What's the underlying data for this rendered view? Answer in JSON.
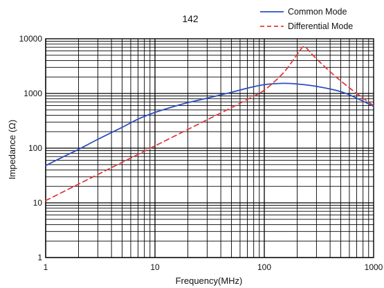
{
  "chart_data": {
    "type": "line",
    "title": "142",
    "xlabel": "Frequency(MHz)",
    "ylabel": "Impedance (Ω)",
    "xscale": "log",
    "yscale": "log",
    "xlim": [
      1,
      1000
    ],
    "ylim": [
      1,
      10000
    ],
    "x_tick_labels": [
      "1",
      "10",
      "100",
      "1000"
    ],
    "y_tick_labels": [
      "1",
      "10",
      "100",
      "1000",
      "10000"
    ],
    "grid": true,
    "legend": "top-right",
    "series": [
      {
        "name": "Common Mode",
        "color": "#2b4fbf",
        "dash": "solid",
        "points": [
          [
            1,
            48
          ],
          [
            1.5,
            72
          ],
          [
            2,
            95
          ],
          [
            3,
            145
          ],
          [
            5,
            240
          ],
          [
            7,
            340
          ],
          [
            10,
            450
          ],
          [
            15,
            580
          ],
          [
            20,
            680
          ],
          [
            30,
            820
          ],
          [
            50,
            1050
          ],
          [
            70,
            1250
          ],
          [
            100,
            1450
          ],
          [
            150,
            1530
          ],
          [
            200,
            1490
          ],
          [
            300,
            1350
          ],
          [
            500,
            1080
          ],
          [
            700,
            820
          ],
          [
            1000,
            580
          ]
        ]
      },
      {
        "name": "Differential Mode",
        "color": "#e23a3a",
        "dash": "dashed",
        "points": [
          [
            1,
            11
          ],
          [
            2,
            22
          ],
          [
            3,
            33
          ],
          [
            5,
            55
          ],
          [
            10,
            110
          ],
          [
            20,
            220
          ],
          [
            30,
            330
          ],
          [
            50,
            550
          ],
          [
            70,
            780
          ],
          [
            100,
            1150
          ],
          [
            150,
            2400
          ],
          [
            200,
            5200
          ],
          [
            230,
            7200
          ],
          [
            260,
            5800
          ],
          [
            300,
            4300
          ],
          [
            400,
            2500
          ],
          [
            500,
            1700
          ],
          [
            700,
            1000
          ],
          [
            1000,
            600
          ]
        ]
      }
    ]
  }
}
